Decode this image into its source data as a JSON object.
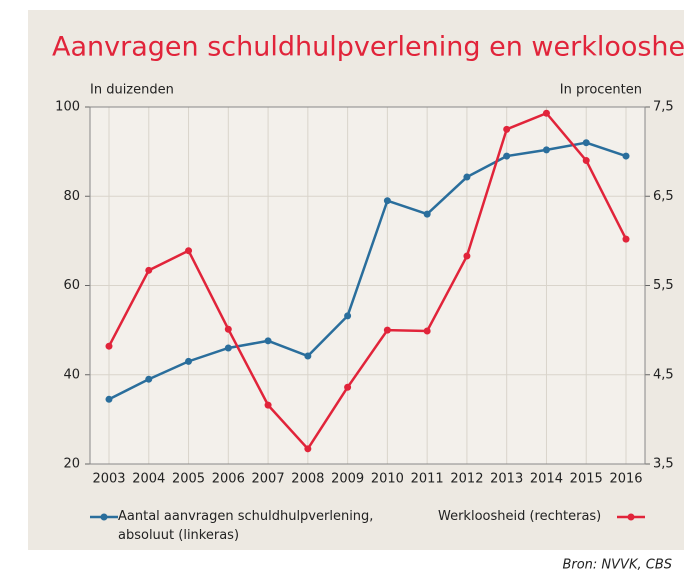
{
  "chart_data": {
    "type": "line",
    "title": "Aanvragen schuldhulpverlening en werkloosheid",
    "ylabel": "In duizenden",
    "y2label": "In procenten",
    "source": "Bron: NVVK, CBS",
    "categories": [
      "2003",
      "2004",
      "2005",
      "2006",
      "2007",
      "2008",
      "2009",
      "2010",
      "2011",
      "2012",
      "2013",
      "2014",
      "2015",
      "2016"
    ],
    "ylim": [
      20,
      100
    ],
    "yticks": [
      20,
      40,
      60,
      80,
      100
    ],
    "y2lim": [
      3.5,
      7.5
    ],
    "y2ticks": [
      {
        "value": 3.5,
        "label": "3,5"
      },
      {
        "value": 4.5,
        "label": "4,5"
      },
      {
        "value": 5.5,
        "label": "5,5"
      },
      {
        "value": 6.5,
        "label": "6,5"
      },
      {
        "value": 7.5,
        "label": "7,5"
      }
    ],
    "grid": true,
    "series": [
      {
        "name": "Aantal aanvragen schuldhulpverlening, absoluut (linkeras)",
        "color": "#2a6e9c",
        "values": [
          34.5,
          39,
          43,
          46,
          47.6,
          44.2,
          53.2,
          79,
          76,
          84.3,
          89,
          90.4,
          92,
          89
        ]
      },
      {
        "name": "Werkloosheid (rechteras)",
        "color": "#e1243a",
        "axis": "y2",
        "values": [
          4.82,
          5.67,
          5.89,
          5.01,
          4.16,
          3.67,
          4.36,
          5.0,
          4.99,
          5.83,
          7.25,
          7.43,
          6.9,
          6.02
        ]
      }
    ]
  }
}
